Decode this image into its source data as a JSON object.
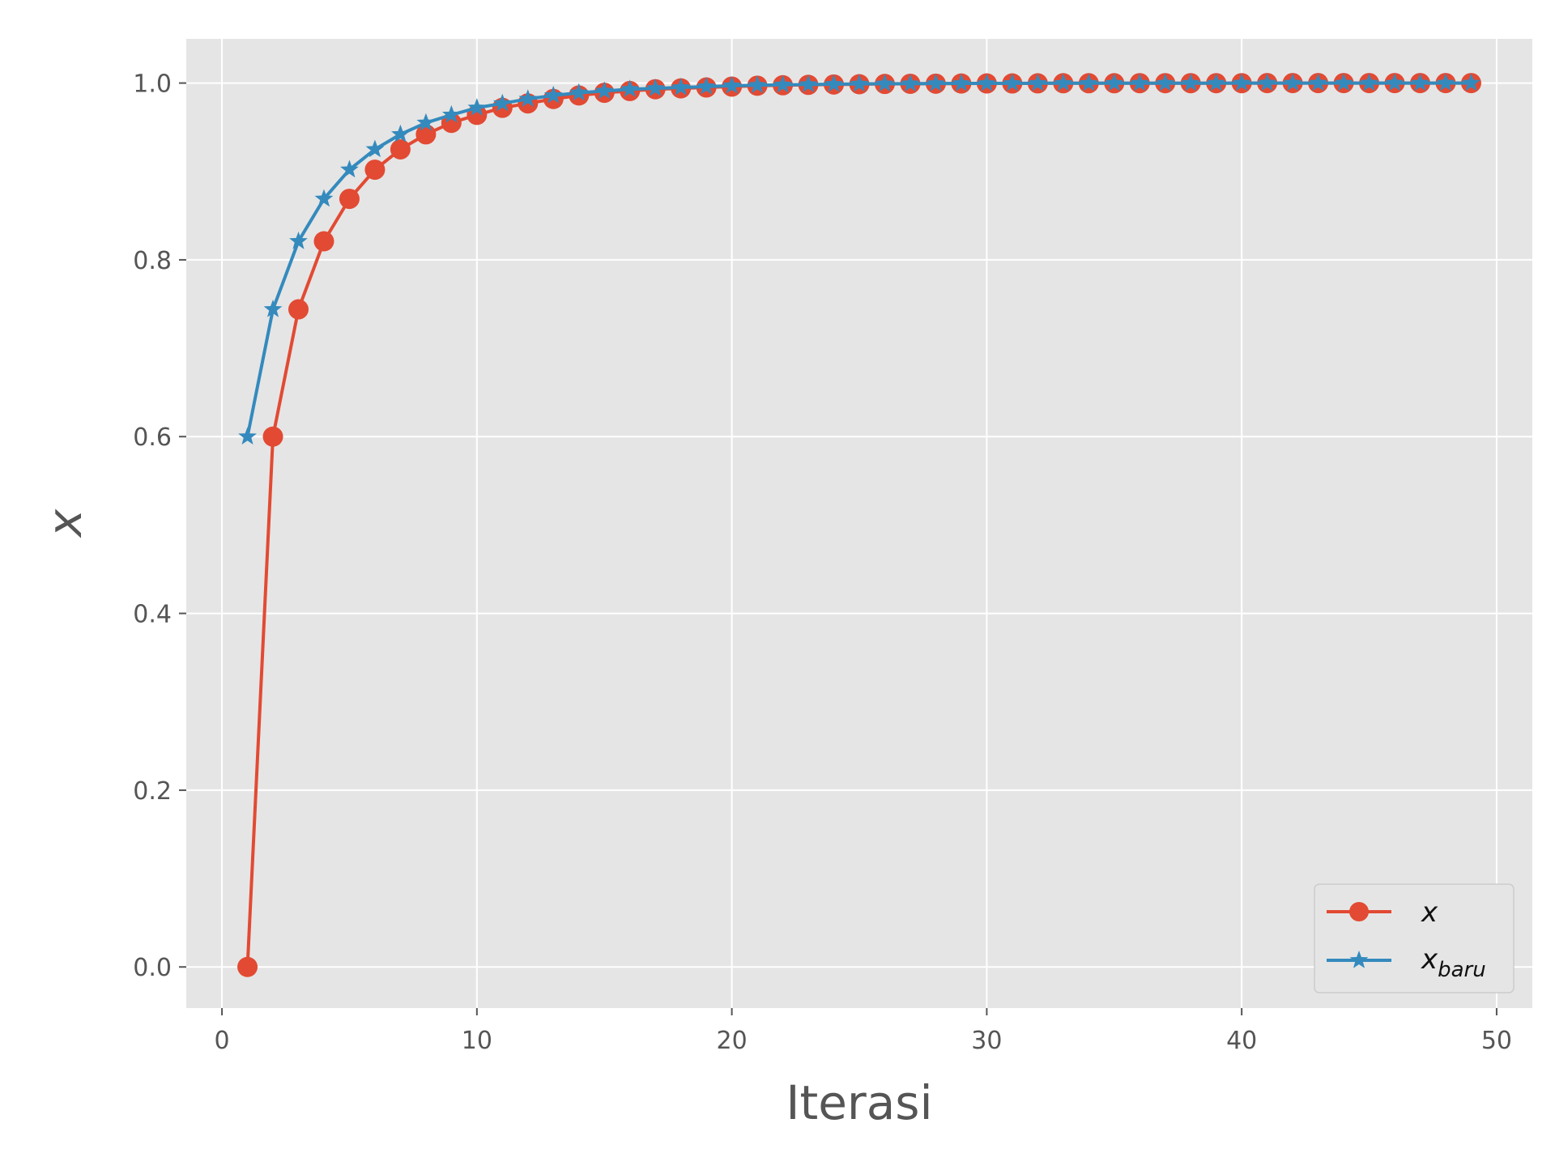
{
  "chart_data": {
    "type": "line",
    "title": "",
    "xlabel": "Iterasi",
    "ylabel": "x",
    "xlim": [
      -1.4,
      51.4
    ],
    "ylim": [
      -0.0465,
      1.05
    ],
    "xticks": [
      0,
      10,
      20,
      30,
      40,
      50
    ],
    "xtick_labels": [
      "0",
      "10",
      "20",
      "30",
      "40",
      "50"
    ],
    "yticks": [
      0.0,
      0.2,
      0.4,
      0.6,
      0.8,
      1.0
    ],
    "ytick_labels": [
      "0.0",
      "0.2",
      "0.4",
      "0.6",
      "0.8",
      "1.0"
    ],
    "grid": true,
    "legend_position": "bottom-right",
    "background_color": "#e5e5e5",
    "grid_color": "#ffffff",
    "series": [
      {
        "name": "x",
        "color": "#e24a33",
        "marker": "circle",
        "x": [
          1,
          2,
          3,
          4,
          5,
          6,
          7,
          8,
          9,
          10,
          11,
          12,
          13,
          14,
          15,
          16,
          17,
          18,
          19,
          20,
          21,
          22,
          23,
          24,
          25,
          26,
          27,
          28,
          29,
          30,
          31,
          32,
          33,
          34,
          35,
          36,
          37,
          38,
          39,
          40,
          41,
          42,
          43,
          44,
          45,
          46,
          47,
          48,
          49
        ],
        "y": [
          0.0,
          0.6,
          0.744,
          0.821,
          0.869,
          0.902,
          0.925,
          0.942,
          0.955,
          0.964,
          0.972,
          0.977,
          0.982,
          0.986,
          0.989,
          0.991,
          0.993,
          0.994,
          0.995,
          0.996,
          0.997,
          0.9975,
          0.998,
          0.9984,
          0.9987,
          0.999,
          0.9992,
          0.9993,
          0.9995,
          0.9996,
          0.9996,
          0.9997,
          0.9998,
          0.9998,
          0.9998,
          0.9999,
          0.9999,
          0.9999,
          0.9999,
          0.9999,
          1.0,
          1.0,
          1.0,
          1.0,
          1.0,
          1.0,
          1.0,
          1.0,
          1.0
        ]
      },
      {
        "name": "x_baru",
        "name_main": "x",
        "name_sub": "baru",
        "color": "#348abd",
        "marker": "star",
        "x": [
          1,
          2,
          3,
          4,
          5,
          6,
          7,
          8,
          9,
          10,
          11,
          12,
          13,
          14,
          15,
          16,
          17,
          18,
          19,
          20,
          21,
          22,
          23,
          24,
          25,
          26,
          27,
          28,
          29,
          30,
          31,
          32,
          33,
          34,
          35,
          36,
          37,
          38,
          39,
          40,
          41,
          42,
          43,
          44,
          45,
          46,
          47,
          48,
          49
        ],
        "y": [
          0.6,
          0.744,
          0.821,
          0.869,
          0.902,
          0.925,
          0.942,
          0.955,
          0.964,
          0.972,
          0.977,
          0.982,
          0.986,
          0.989,
          0.991,
          0.993,
          0.994,
          0.995,
          0.996,
          0.997,
          0.9975,
          0.998,
          0.9984,
          0.9987,
          0.999,
          0.9992,
          0.9993,
          0.9995,
          0.9996,
          0.9996,
          0.9997,
          0.9998,
          0.9998,
          0.9998,
          0.9999,
          0.9999,
          0.9999,
          0.9999,
          0.9999,
          1.0,
          1.0,
          1.0,
          1.0,
          1.0,
          1.0,
          1.0,
          1.0,
          1.0,
          1.0
        ]
      }
    ]
  }
}
